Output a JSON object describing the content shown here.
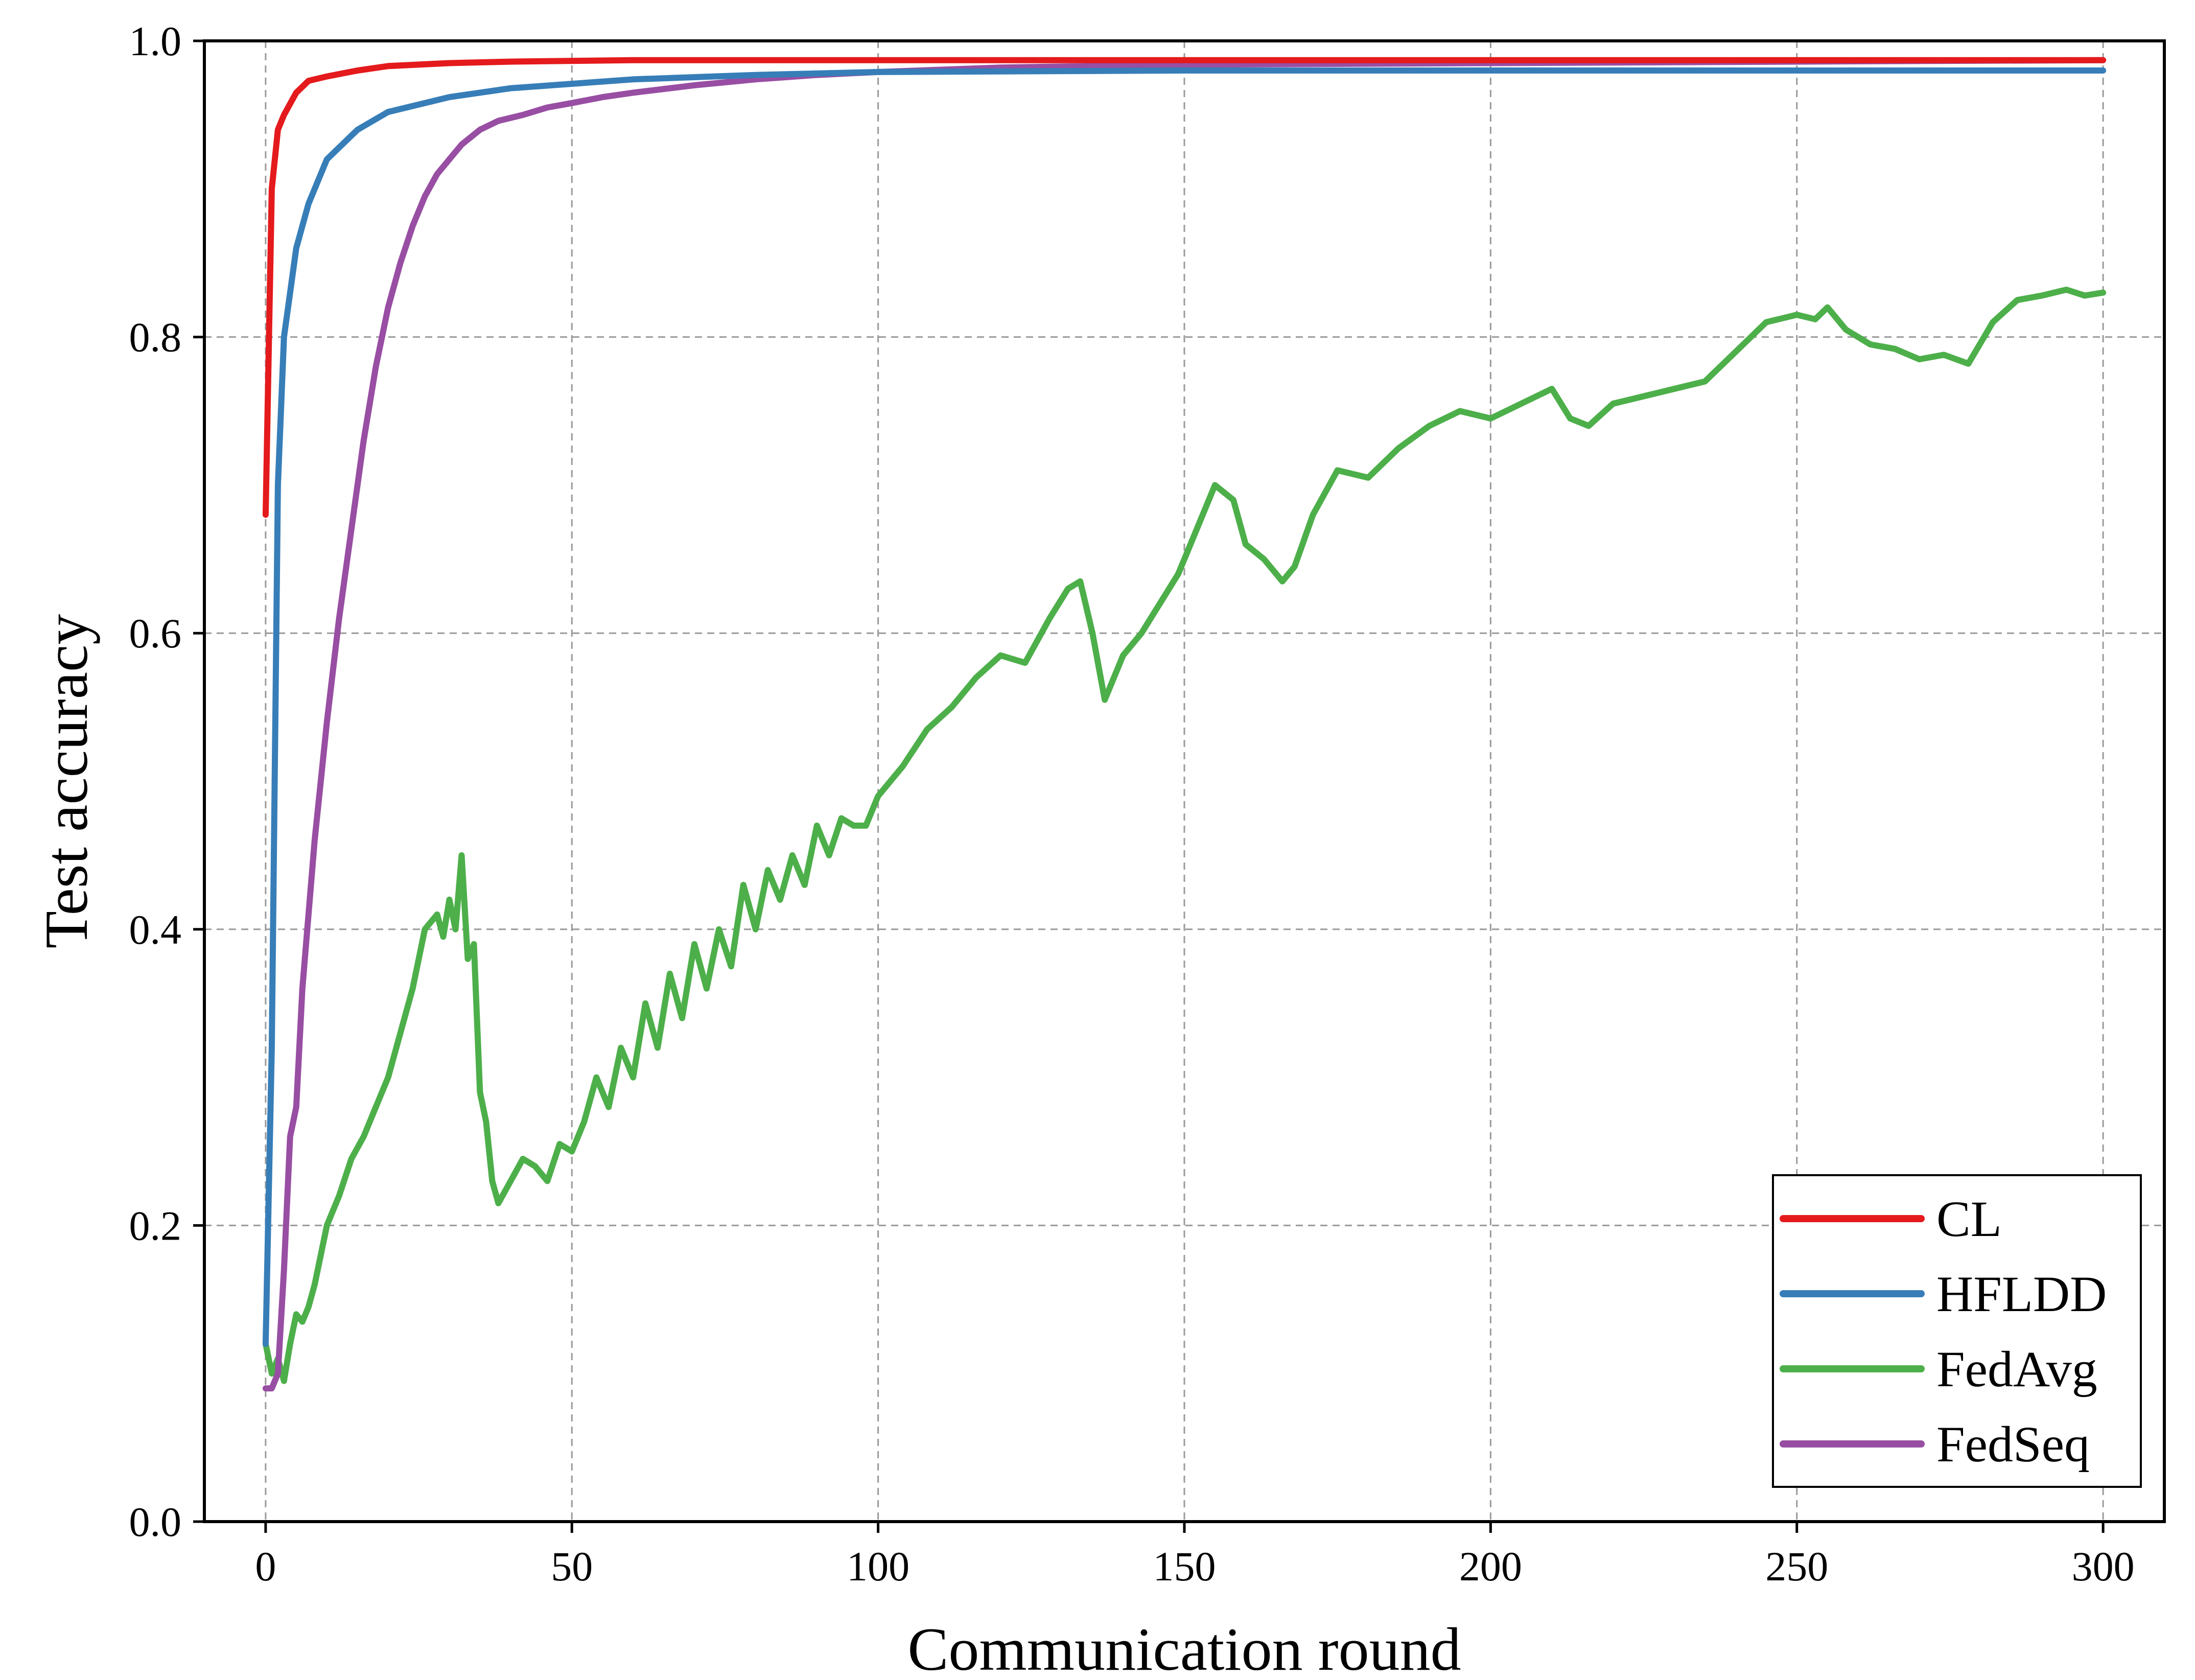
{
  "chart_data": {
    "type": "line",
    "title": "",
    "xlabel": "Communication round",
    "ylabel": "Test accuracy",
    "xlim": [
      -10,
      310
    ],
    "ylim": [
      0.0,
      1.0
    ],
    "xticks": [
      0,
      50,
      100,
      150,
      200,
      250,
      300
    ],
    "yticks": [
      0.0,
      0.2,
      0.4,
      0.6,
      0.8,
      1.0
    ],
    "xtick_labels": [
      "0",
      "50",
      "100",
      "150",
      "200",
      "250",
      "300"
    ],
    "ytick_labels": [
      "0.0",
      "0.2",
      "0.4",
      "0.6",
      "0.8",
      "1.0"
    ],
    "grid": true,
    "legend_position": "bottom-right",
    "series": [
      {
        "name": "CL",
        "color": "#e41a1c",
        "x": [
          0,
          1,
          2,
          3,
          5,
          7,
          10,
          15,
          20,
          30,
          40,
          60,
          100,
          150,
          200,
          250,
          300
        ],
        "y": [
          0.68,
          0.9,
          0.94,
          0.95,
          0.965,
          0.973,
          0.976,
          0.98,
          0.983,
          0.985,
          0.986,
          0.987,
          0.987,
          0.987,
          0.987,
          0.987,
          0.987
        ]
      },
      {
        "name": "HFLDD",
        "color": "#377eb8",
        "x": [
          0,
          1,
          2,
          3,
          5,
          7,
          10,
          15,
          20,
          30,
          40,
          60,
          80,
          100,
          150,
          200,
          250,
          300
        ],
        "y": [
          0.12,
          0.32,
          0.7,
          0.8,
          0.86,
          0.89,
          0.92,
          0.94,
          0.952,
          0.962,
          0.968,
          0.974,
          0.977,
          0.979,
          0.98,
          0.98,
          0.98,
          0.98
        ]
      },
      {
        "name": "FedAvg",
        "color": "#4daf4a",
        "x": [
          0,
          1,
          2,
          3,
          4,
          5,
          6,
          7,
          8,
          10,
          12,
          14,
          16,
          18,
          20,
          22,
          24,
          26,
          28,
          29,
          30,
          31,
          32,
          33,
          34,
          35,
          36,
          37,
          38,
          40,
          42,
          44,
          46,
          48,
          50,
          52,
          54,
          56,
          58,
          60,
          62,
          64,
          66,
          68,
          70,
          72,
          74,
          76,
          78,
          80,
          82,
          84,
          86,
          88,
          90,
          92,
          94,
          96,
          98,
          100,
          104,
          108,
          112,
          116,
          120,
          124,
          128,
          131,
          133,
          135,
          137,
          140,
          143,
          146,
          149,
          152,
          155,
          158,
          160,
          163,
          166,
          168,
          171,
          175,
          180,
          185,
          190,
          195,
          200,
          205,
          210,
          213,
          216,
          220,
          225,
          230,
          235,
          240,
          245,
          250,
          253,
          255,
          258,
          262,
          266,
          270,
          274,
          278,
          282,
          286,
          290,
          294,
          297,
          300
        ],
        "y": [
          0.12,
          0.1,
          0.11,
          0.095,
          0.12,
          0.14,
          0.135,
          0.145,
          0.16,
          0.2,
          0.22,
          0.245,
          0.26,
          0.28,
          0.3,
          0.33,
          0.36,
          0.4,
          0.41,
          0.395,
          0.42,
          0.4,
          0.45,
          0.38,
          0.39,
          0.29,
          0.27,
          0.23,
          0.215,
          0.23,
          0.245,
          0.24,
          0.23,
          0.255,
          0.25,
          0.27,
          0.3,
          0.28,
          0.32,
          0.3,
          0.35,
          0.32,
          0.37,
          0.34,
          0.39,
          0.36,
          0.4,
          0.375,
          0.43,
          0.4,
          0.44,
          0.42,
          0.45,
          0.43,
          0.47,
          0.45,
          0.475,
          0.47,
          0.47,
          0.49,
          0.51,
          0.535,
          0.55,
          0.57,
          0.585,
          0.58,
          0.61,
          0.63,
          0.635,
          0.6,
          0.555,
          0.585,
          0.6,
          0.62,
          0.64,
          0.67,
          0.7,
          0.69,
          0.66,
          0.65,
          0.635,
          0.645,
          0.68,
          0.71,
          0.705,
          0.725,
          0.74,
          0.75,
          0.745,
          0.755,
          0.765,
          0.745,
          0.74,
          0.755,
          0.76,
          0.765,
          0.77,
          0.79,
          0.81,
          0.815,
          0.812,
          0.82,
          0.805,
          0.795,
          0.792,
          0.785,
          0.788,
          0.782,
          0.81,
          0.825,
          0.828,
          0.832,
          0.828,
          0.83
        ]
      },
      {
        "name": "FedSeq",
        "color": "#984ea3",
        "x": [
          0,
          1,
          2,
          3,
          4,
          5,
          6,
          7,
          8,
          10,
          12,
          14,
          16,
          18,
          20,
          22,
          24,
          26,
          28,
          30,
          32,
          35,
          38,
          42,
          46,
          50,
          55,
          60,
          70,
          80,
          90,
          100,
          120,
          150,
          200,
          250,
          300
        ],
        "y": [
          0.09,
          0.09,
          0.1,
          0.17,
          0.26,
          0.28,
          0.36,
          0.41,
          0.46,
          0.54,
          0.61,
          0.67,
          0.73,
          0.78,
          0.82,
          0.85,
          0.875,
          0.895,
          0.91,
          0.92,
          0.93,
          0.94,
          0.946,
          0.95,
          0.955,
          0.958,
          0.962,
          0.965,
          0.97,
          0.974,
          0.977,
          0.979,
          0.982,
          0.984,
          0.985,
          0.986,
          0.987
        ]
      }
    ]
  }
}
